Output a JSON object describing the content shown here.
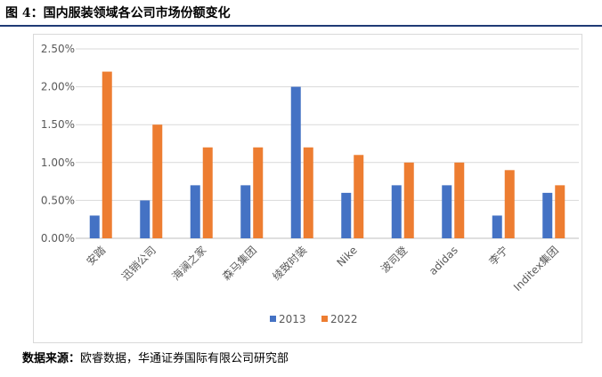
{
  "figure": {
    "title_prefix": "图 4：",
    "title": "国内服装领域各公司市场份额变化"
  },
  "source": {
    "label": "数据来源：",
    "text": "欧睿数据，华通证券国际有限公司研究部"
  },
  "chart_data": {
    "type": "bar",
    "title": "",
    "xlabel": "",
    "ylabel": "",
    "categories": [
      "安踏",
      "迅销公司",
      "海澜之家",
      "森马集团",
      "绫致时装",
      "Nike",
      "波司登",
      "adidas",
      "李宁",
      "Inditex集团"
    ],
    "series": [
      {
        "name": "2013",
        "values": [
          0.3,
          0.5,
          0.7,
          0.7,
          2.0,
          0.6,
          0.7,
          0.7,
          0.3,
          0.6
        ],
        "color": "#4472c4"
      },
      {
        "name": "2022",
        "values": [
          2.2,
          1.5,
          1.2,
          1.2,
          1.2,
          1.1,
          1.0,
          1.0,
          0.9,
          0.7
        ],
        "color": "#ed7d31"
      }
    ],
    "ylim": [
      0,
      2.5
    ],
    "yticks": [
      "0.00%",
      "0.50%",
      "1.00%",
      "1.50%",
      "2.00%",
      "2.50%"
    ],
    "grid": true,
    "legend_position": "bottom"
  }
}
